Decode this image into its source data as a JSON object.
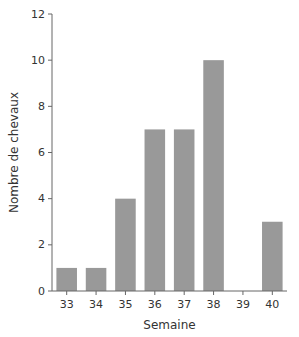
{
  "chart_data": {
    "type": "bar",
    "xlabel": "Semaine",
    "ylabel": "Nombre de chevaux",
    "categories": [
      "33",
      "34",
      "35",
      "36",
      "37",
      "38",
      "39",
      "40"
    ],
    "values": [
      1,
      1,
      4,
      7,
      7,
      10,
      0,
      3
    ],
    "color": "#999999",
    "ylim": [
      0,
      12
    ],
    "yticks": [
      0,
      2,
      4,
      6,
      8,
      10,
      12
    ],
    "grid": false
  }
}
